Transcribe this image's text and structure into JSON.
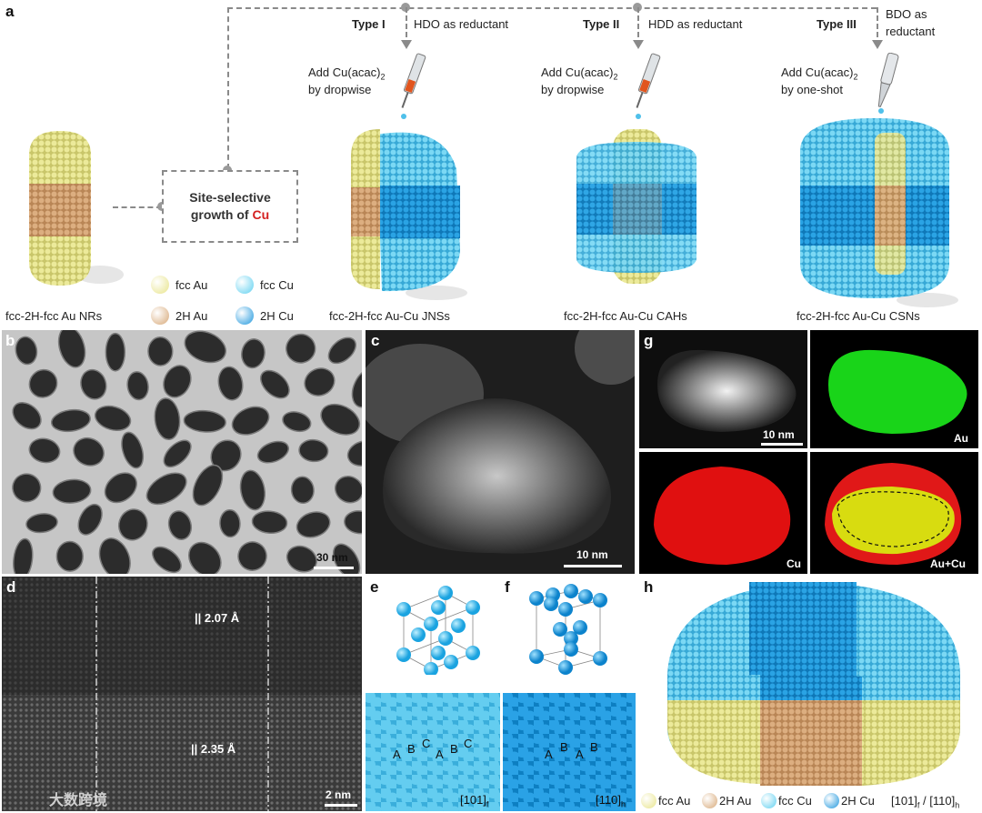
{
  "panel_a": {
    "letter": "a",
    "site_box": {
      "line1": "Site-selective",
      "line2": "growth of ",
      "element": "Cu"
    },
    "types": [
      {
        "type": "Type I",
        "reductant": "HDO as reductant",
        "add": "Add Cu(acac)",
        "add_sub": "2",
        "method": "by dropwise",
        "product": "fcc-2H-fcc Au-Cu JNSs"
      },
      {
        "type": "Type II",
        "reductant": "HDD as reductant",
        "add": "Add Cu(acac)",
        "add_sub": "2",
        "method": "by dropwise",
        "product": "fcc-2H-fcc Au-Cu CAHs"
      },
      {
        "type": "Type III",
        "reductant_line1": "BDO as",
        "reductant_line2": "reductant",
        "add": "Add Cu(acac)",
        "add_sub": "2",
        "method": "by one-shot",
        "product": "fcc-2H-fcc Au-Cu CSNs"
      }
    ],
    "start_product": "fcc-2H-fcc Au NRs",
    "legend": [
      {
        "label": "fcc Au",
        "color": "#e8e48a"
      },
      {
        "label": "fcc Cu",
        "color": "#5fd0f0"
      },
      {
        "label": "2H Au",
        "color": "#d7a877"
      },
      {
        "label": "2H Cu",
        "color": "#1f97dd"
      }
    ]
  },
  "panel_b": {
    "letter": "b",
    "scale": "30 nm"
  },
  "panel_c": {
    "letter": "c",
    "scale": "10 nm"
  },
  "panel_g": {
    "letter": "g",
    "scale": "10 nm",
    "maps": [
      "Au",
      "Cu",
      "Au+Cu"
    ]
  },
  "panel_d": {
    "letter": "d",
    "spacing_top": "2.07 Å",
    "spacing_bottom": "2.35 Å",
    "scale": "2 nm"
  },
  "panel_e": {
    "letter": "e",
    "stacking": [
      "A",
      "B",
      "C",
      "A",
      "B",
      "C"
    ],
    "zone": "[101]",
    "zone_sub": "f"
  },
  "panel_f": {
    "letter": "f",
    "stacking": [
      "A",
      "B",
      "A",
      "B"
    ],
    "zone": "[110]",
    "zone_sub": "h"
  },
  "panel_h": {
    "letter": "h",
    "legend": [
      {
        "label": "fcc Au",
        "color": "#e8e48a"
      },
      {
        "label": "2H Au",
        "color": "#d7a877"
      },
      {
        "label": "fcc Cu",
        "color": "#5fd0f0"
      },
      {
        "label": "2H Cu",
        "color": "#1f97dd"
      }
    ],
    "zone_a": "[101]",
    "zone_a_sub": "f",
    "separator": " / ",
    "zone_b": "[110]",
    "zone_b_sub": "h"
  },
  "watermark": "大数跨境"
}
